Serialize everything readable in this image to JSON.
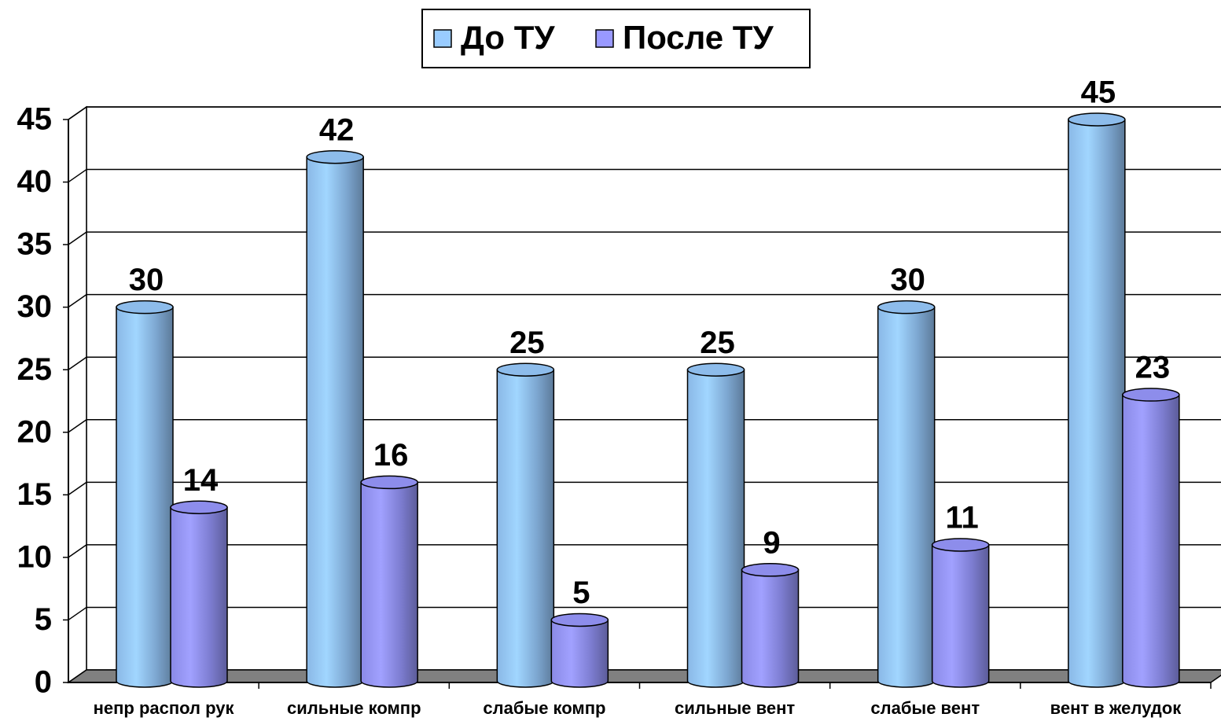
{
  "chart_data": {
    "type": "bar",
    "categories": [
      "непр распол рук",
      "сильные компр",
      "слабые компр",
      "сильные вент",
      "слабые вент",
      "вент в желудок"
    ],
    "series": [
      {
        "name": "До ТУ",
        "color": "#99ccff",
        "values": [
          30,
          42,
          25,
          25,
          30,
          45
        ]
      },
      {
        "name": "После ТУ",
        "color": "#9999ff",
        "values": [
          14,
          16,
          5,
          9,
          11,
          23
        ]
      }
    ],
    "ylim": [
      0,
      45
    ],
    "yticks": [
      0,
      5,
      10,
      15,
      20,
      25,
      30,
      35,
      40,
      45
    ],
    "grid": true,
    "legend": "top"
  }
}
